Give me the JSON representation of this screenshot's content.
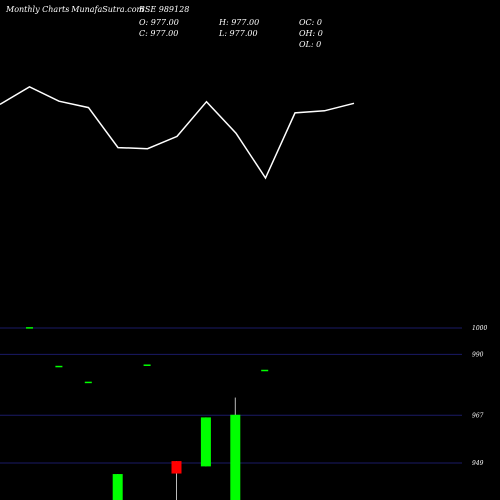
{
  "header": {
    "title": "Monthly Charts",
    "site": "- MunafaSutra.com",
    "symbol": "BSE 989128"
  },
  "ohlc": {
    "open": "O: 977.00",
    "high": "H: 977.00",
    "oc": "OC: 0",
    "close": "C: 977.00",
    "low": "L: 977.00",
    "oh": "OH: 0",
    "ol": "OL: 0"
  },
  "colors": {
    "up": "#00ff00",
    "down": "#ff0000",
    "line": "#ffffff",
    "grid": "#1a1a66",
    "bg": "#000000"
  },
  "chart_data": [
    {
      "type": "line",
      "series": [
        {
          "values": [
            969.6,
            976.2,
            970.8,
            968.4,
            953.4,
            953.0,
            957.6,
            970.6,
            958.8,
            942.0,
            966.4,
            967.2,
            970.0
          ]
        }
      ]
    },
    {
      "type": "candlestick",
      "yticks": [
        {
          "value": 1000,
          "label": "1000"
        },
        {
          "value": 990,
          "label": "990"
        },
        {
          "value": 967,
          "label": "967"
        },
        {
          "value": 949,
          "label": "949"
        }
      ],
      "ylim": [
        935,
        1003
      ],
      "candles": [
        {
          "o": 1000.3,
          "h": 1000.3,
          "l": 1000.3,
          "c": 1000.3
        },
        {
          "o": 985.7,
          "h": 985.7,
          "l": 985.7,
          "c": 985.7
        },
        {
          "o": 979.7,
          "h": 979.7,
          "l": 979.7,
          "c": 979.7
        },
        {
          "o": 932.0,
          "h": 944.8,
          "l": 932.0,
          "c": 944.8
        },
        {
          "o": 986.2,
          "h": 986.2,
          "l": 986.2,
          "c": 986.2
        },
        {
          "o": 949.7,
          "h": 949.7,
          "l": 932.0,
          "c": 945.0
        },
        {
          "o": 947.7,
          "h": 966.2,
          "l": 947.7,
          "c": 966.2
        },
        {
          "o": 932.0,
          "h": 973.7,
          "l": 932.0,
          "c": 967.2
        },
        {
          "o": 984.2,
          "h": 984.2,
          "l": 984.2,
          "c": 984.2
        }
      ]
    }
  ]
}
